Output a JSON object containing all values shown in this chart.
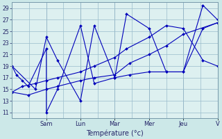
{
  "xlabel": "Température (°c)",
  "background_color": "#cce8e8",
  "plot_bg_color": "#ddf0f0",
  "line_color": "#0000bb",
  "grid_color": "#99bbcc",
  "spine_color": "#7799aa",
  "ylim": [
    10,
    30
  ],
  "yticks": [
    11,
    13,
    15,
    17,
    19,
    21,
    23,
    25,
    27,
    29
  ],
  "xlim": [
    0,
    7
  ],
  "day_labels": [
    "Sam",
    "Lun",
    "Mar",
    "Mer",
    "Jeu",
    "V"
  ],
  "day_positions": [
    1.17,
    2.33,
    3.5,
    4.67,
    5.83,
    7.0
  ],
  "series_x": [
    [
      0,
      0.15,
      0.35,
      0.55,
      1.17,
      1.17,
      1.55,
      2.33,
      2.8,
      3.5,
      4.0,
      4.67,
      5.25,
      5.83,
      6.5,
      7.0
    ],
    [
      0,
      0.8,
      1.17,
      1.55,
      2.33,
      2.8,
      3.5,
      3.9,
      4.67,
      5.25,
      5.83,
      6.5,
      7.0
    ],
    [
      0,
      0.55,
      1.17,
      1.55,
      2.33,
      2.8,
      3.5,
      4.0,
      4.67,
      5.25,
      5.83,
      7.0
    ],
    [
      0,
      0.35,
      0.8,
      1.17,
      1.55,
      2.33,
      2.8,
      3.5,
      3.9,
      4.67,
      5.25,
      5.83,
      6.5,
      7.0
    ]
  ],
  "series_y": [
    [
      19,
      17.5,
      16.5,
      15.5,
      22,
      11,
      15,
      26,
      16,
      17,
      17.5,
      18,
      18,
      18,
      29.5,
      27
    ],
    [
      19,
      15,
      24,
      20,
      13,
      26,
      17,
      28,
      25.5,
      18,
      18,
      25.5,
      26.5
    ],
    [
      14.5,
      14,
      15,
      15.5,
      16.5,
      17,
      17.5,
      19.5,
      21,
      22.5,
      24.5,
      26.5
    ],
    [
      14.5,
      15.5,
      16,
      16.5,
      17,
      18,
      19,
      20.5,
      22,
      24,
      26,
      25.5,
      20,
      19
    ]
  ]
}
